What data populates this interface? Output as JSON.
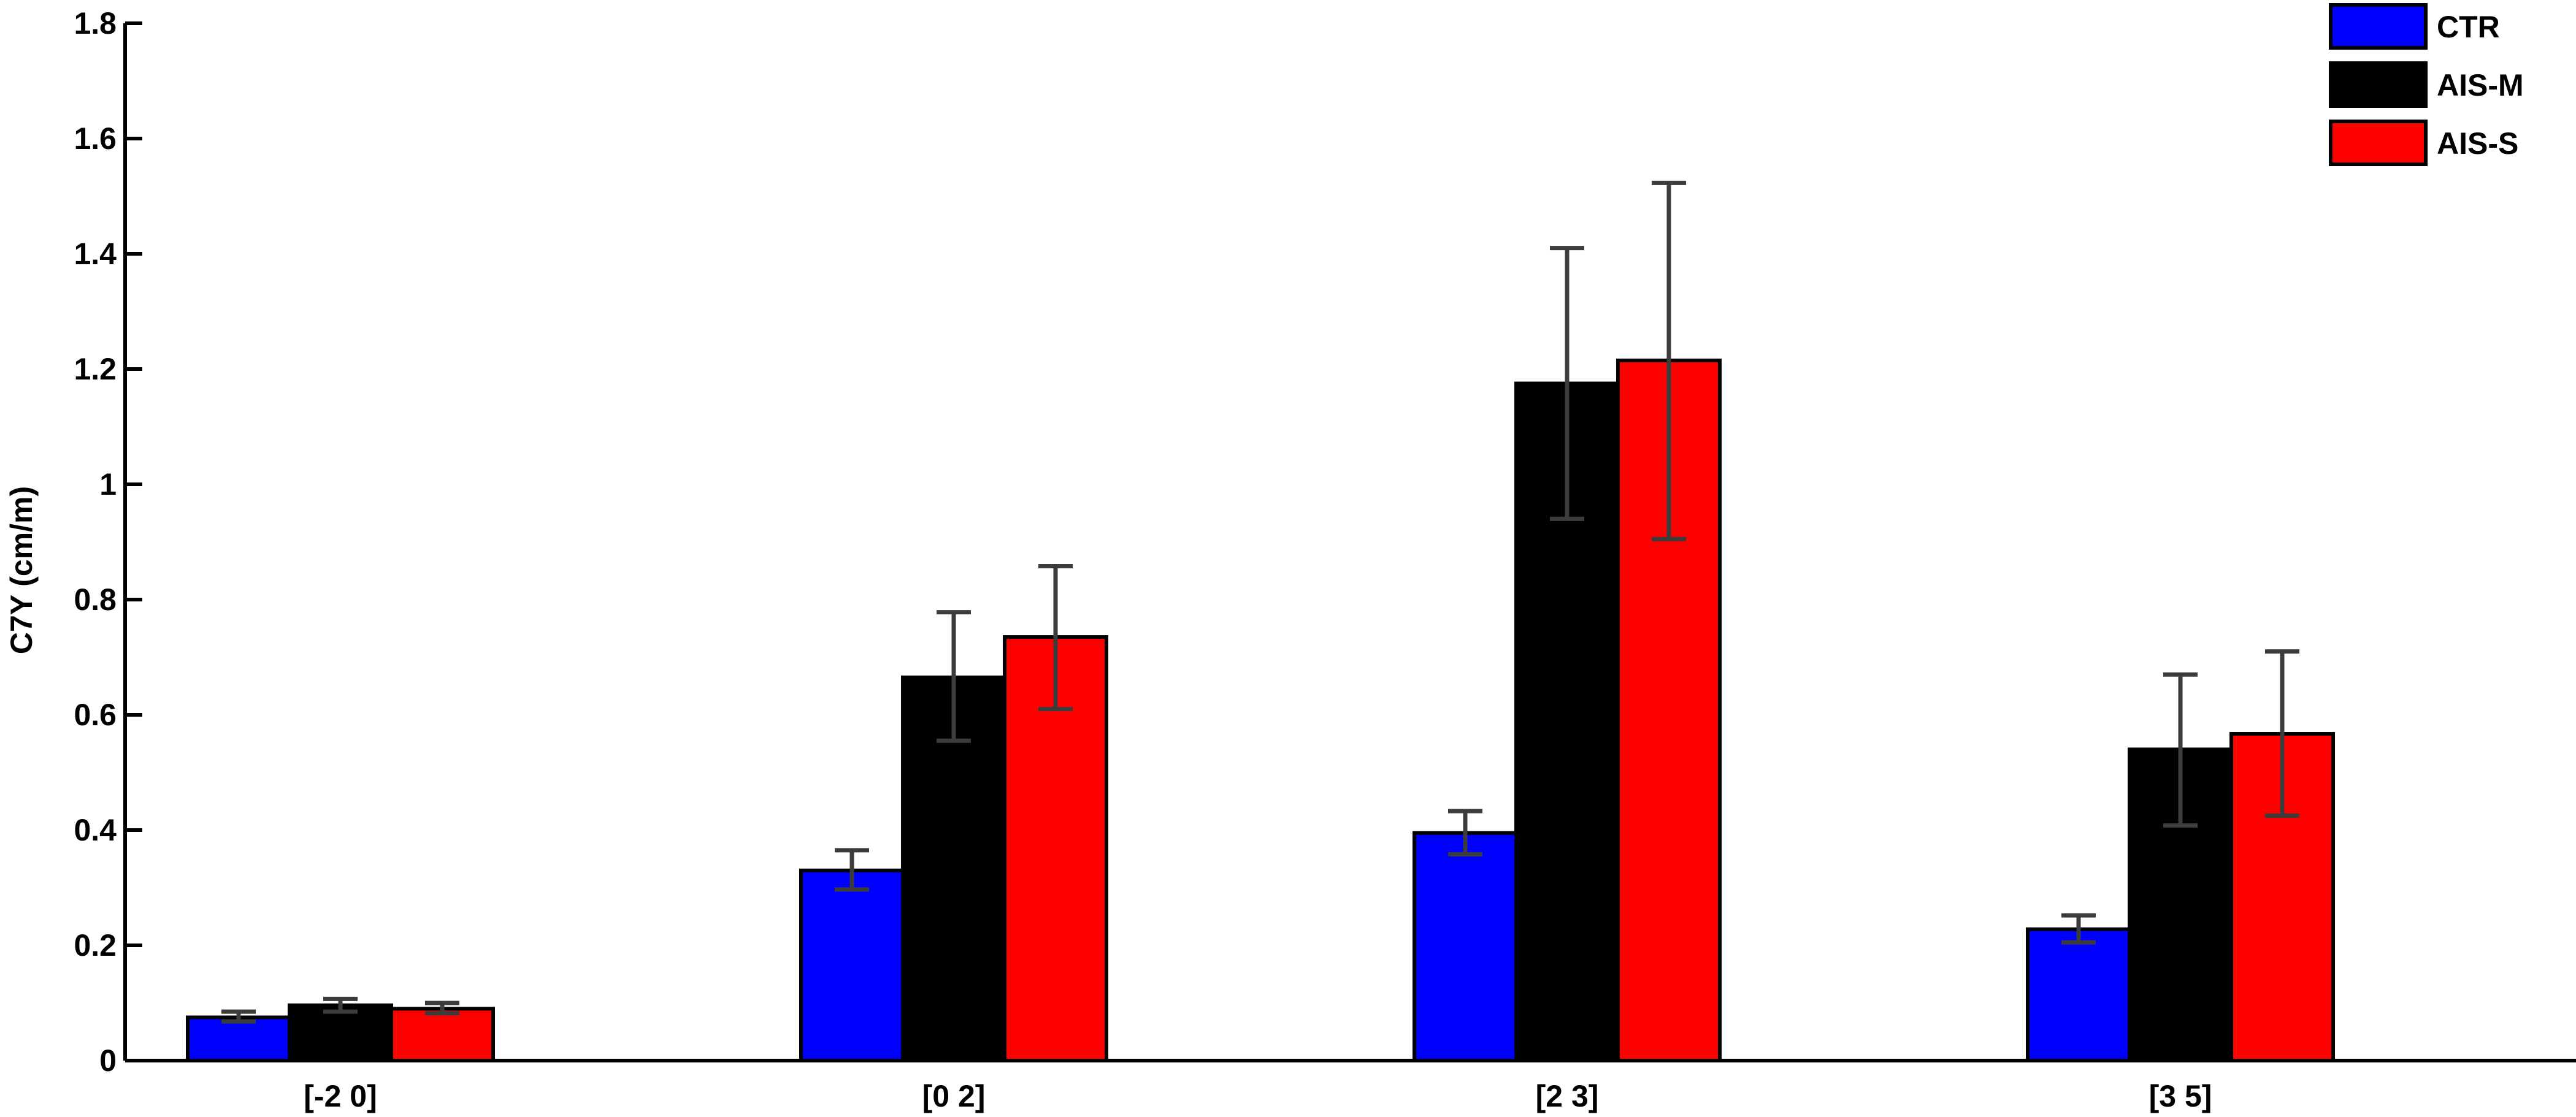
{
  "chart_data": {
    "type": "bar",
    "ylabel": "C7Y (cm/m)",
    "xlabel": "",
    "ylim": [
      0,
      1.8
    ],
    "yticks": [
      0,
      0.2,
      0.4,
      0.6,
      0.8,
      1,
      1.2,
      1.4,
      1.6,
      1.8
    ],
    "ytick_labels": [
      "0",
      "0.2",
      "0.4",
      "0.6",
      "0.8",
      "1",
      "1.2",
      "1.4",
      "1.6",
      "1.8"
    ],
    "categories": [
      "[-2 0]",
      "[0 2]",
      "[2 3]",
      "[3 5]"
    ],
    "grid": false,
    "legend_position": "top-right",
    "series": [
      {
        "name": "CTR",
        "color": "#0000ff",
        "values": [
          0.075,
          0.33,
          0.395,
          0.228
        ],
        "error_low": [
          0.068,
          0.297,
          0.358,
          0.205
        ],
        "error_high": [
          0.085,
          0.365,
          0.433,
          0.252
        ]
      },
      {
        "name": "AIS-M",
        "color": "#000000",
        "values": [
          0.096,
          0.665,
          1.175,
          0.54
        ],
        "error_low": [
          0.085,
          0.555,
          0.94,
          0.408
        ],
        "error_high": [
          0.107,
          0.778,
          1.41,
          0.67
        ]
      },
      {
        "name": "AIS-S",
        "color": "#ff0000",
        "values": [
          0.09,
          0.735,
          1.215,
          0.567
        ],
        "error_low": [
          0.082,
          0.61,
          0.905,
          0.425
        ],
        "error_high": [
          0.1,
          0.858,
          1.523,
          0.71
        ]
      }
    ]
  }
}
